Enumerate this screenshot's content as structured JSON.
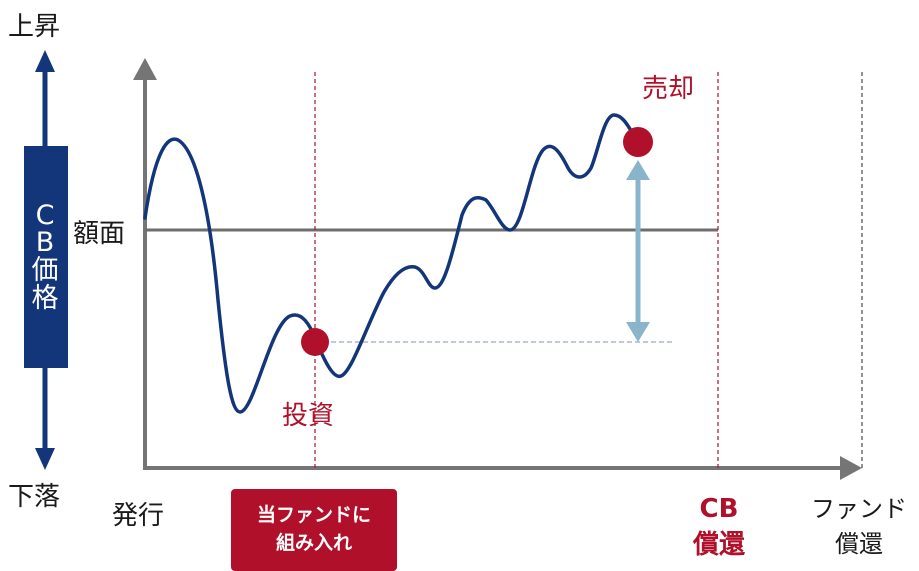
{
  "labels": {
    "up": "上昇",
    "down": "下落",
    "cb_price": [
      "C",
      "B",
      "価",
      "格"
    ],
    "face_value": "額面",
    "sell": "売却",
    "invest": "投資",
    "issue": "発行",
    "fund_entry": [
      "当ファンドに",
      "組み入れ"
    ],
    "cb_redemption": [
      "CB",
      "償還"
    ],
    "fund_redemption": [
      "ファンド",
      "償還"
    ]
  },
  "colors": {
    "curve": "#13357a",
    "axis": "#757575",
    "accent_red": "#b0102a",
    "side_bar": "#13357a",
    "gain_arrow": "#8ab4cc",
    "dashed_ref": "#9aa6c8"
  }
}
